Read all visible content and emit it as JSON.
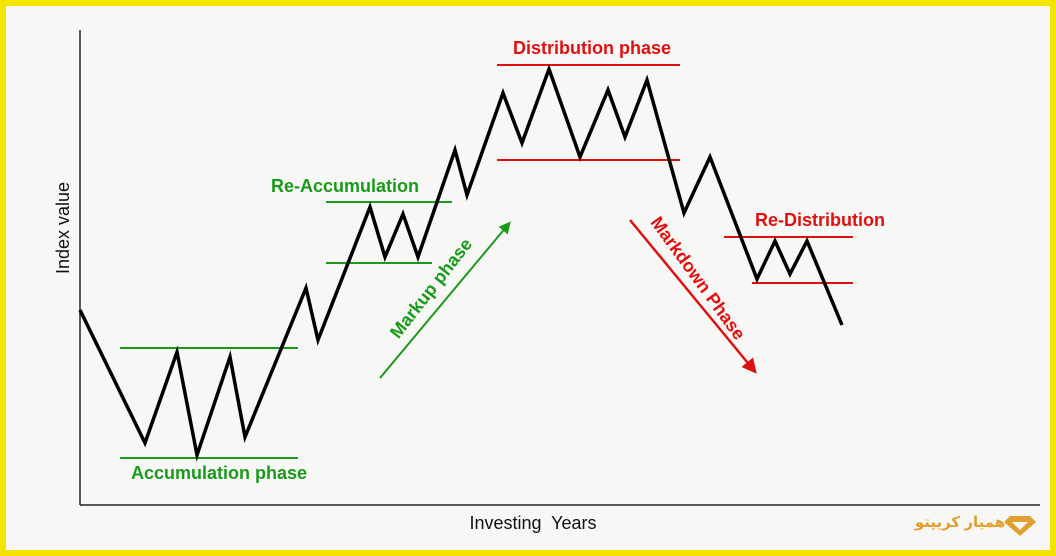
{
  "axes": {
    "y_label": "Index value",
    "x_label": "Investing  Years"
  },
  "phases": {
    "accumulation": "Accumulation phase",
    "re_accumulation": "Re-Accumulation",
    "markup": "Markup phase",
    "distribution": "Distribution phase",
    "re_distribution": "Re-Distribution",
    "markdown": "Markdown Phase"
  },
  "watermark": "همیار کریپتو"
}
